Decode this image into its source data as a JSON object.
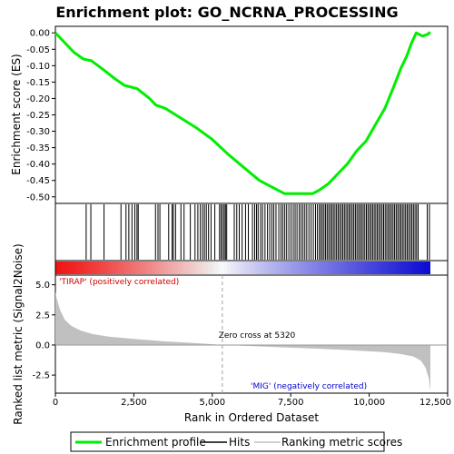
{
  "chart_data": {
    "type": "line",
    "title": "Enrichment plot: GO_NCRNA_PROCESSING",
    "x_axis": {
      "label": "Rank in Ordered Dataset",
      "range": [
        0,
        12500
      ],
      "ticks": [
        0,
        2500,
        5000,
        7500,
        10000,
        12500
      ],
      "tick_labels": [
        "0",
        "2,500",
        "5,000",
        "7,500",
        "10,000",
        "12,500"
      ]
    },
    "es_panel": {
      "ylabel": "Enrichment score (ES)",
      "ylim": [
        -0.52,
        0.02
      ],
      "yticks": [
        0.0,
        -0.05,
        -0.1,
        -0.15,
        -0.2,
        -0.25,
        -0.3,
        -0.35,
        -0.4,
        -0.45,
        -0.5
      ],
      "ytick_labels": [
        "0.00",
        "-0.05",
        "-0.10",
        "-0.15",
        "-0.20",
        "-0.25",
        "-0.30",
        "-0.35",
        "-0.40",
        "-0.45",
        "-0.50"
      ],
      "series": [
        {
          "name": "Enrichment profile",
          "color": "#00ee00",
          "x": [
            0,
            300,
            600,
            900,
            1150,
            1500,
            1900,
            2200,
            2600,
            3000,
            3200,
            3500,
            4000,
            4500,
            5000,
            5500,
            6000,
            6500,
            7000,
            7300,
            7600,
            8000,
            8200,
            8400,
            8700,
            9000,
            9300,
            9600,
            9900,
            10200,
            10500,
            10800,
            11000,
            11200,
            11350,
            11500,
            11700,
            11850,
            11950
          ],
          "y": [
            0.0,
            -0.03,
            -0.06,
            -0.08,
            -0.085,
            -0.11,
            -0.14,
            -0.16,
            -0.17,
            -0.2,
            -0.22,
            -0.23,
            -0.26,
            -0.29,
            -0.325,
            -0.37,
            -0.41,
            -0.45,
            -0.475,
            -0.49,
            -0.49,
            -0.49,
            -0.49,
            -0.48,
            -0.46,
            -0.43,
            -0.4,
            -0.36,
            -0.33,
            -0.28,
            -0.23,
            -0.16,
            -0.11,
            -0.07,
            -0.03,
            0.0,
            -0.01,
            -0.005,
            0.002
          ]
        }
      ]
    },
    "hits": {
      "name": "Hits",
      "x": [
        980,
        1130,
        1550,
        2090,
        2250,
        2340,
        2440,
        2530,
        2600,
        2640,
        3190,
        3270,
        3330,
        3610,
        3720,
        3760,
        3830,
        4000,
        4100,
        4300,
        4450,
        4540,
        4620,
        4690,
        4750,
        4810,
        4880,
        4960,
        5080,
        5230,
        5280,
        5330,
        5380,
        5420,
        5460,
        5700,
        5780,
        5860,
        5950,
        6060,
        6150,
        6280,
        6350,
        6410,
        6460,
        6540,
        6600,
        6680,
        6760,
        6830,
        6900,
        6960,
        7030,
        7120,
        7190,
        7250,
        7310,
        7370,
        7440,
        7510,
        7580,
        7640,
        7700,
        7770,
        7830,
        7890,
        7950,
        8010,
        8080,
        8150,
        8220,
        8290,
        8350,
        8410,
        8460,
        8510,
        8560,
        8610,
        8660,
        8710,
        8760,
        8810,
        8860,
        8910,
        8960,
        9010,
        9060,
        9110,
        9160,
        9210,
        9260,
        9310,
        9360,
        9410,
        9460,
        9510,
        9560,
        9610,
        9660,
        9710,
        9760,
        9810,
        9860,
        9910,
        9960,
        10010,
        10060,
        10110,
        10160,
        10210,
        10260,
        10310,
        10360,
        10410,
        10460,
        10510,
        10560,
        10610,
        10660,
        10710,
        10760,
        10810,
        10860,
        10910,
        10960,
        11010,
        11060,
        11110,
        11160,
        11210,
        11260,
        11310,
        11360,
        11410,
        11460,
        11510,
        11560,
        11850,
        11920
      ]
    },
    "rank_panel": {
      "ylabel": "Ranked list metric (Signal2Noise)",
      "ylim": [
        -4.0,
        5.8
      ],
      "yticks": [
        5.0,
        2.5,
        0.0,
        -2.5
      ],
      "ytick_labels": [
        "5.0",
        "2.5",
        "0.0",
        "-2.5"
      ],
      "fill_color": "#c0c0c0",
      "metric_x": [
        0,
        50,
        150,
        300,
        500,
        800,
        1200,
        1700,
        2500,
        3500,
        4500,
        5320,
        6500,
        7500,
        8500,
        9500,
        10500,
        11000,
        11400,
        11650,
        11800,
        11900,
        11950
      ],
      "metric_y": [
        4.4,
        3.8,
        2.9,
        2.1,
        1.6,
        1.2,
        0.9,
        0.7,
        0.5,
        0.3,
        0.15,
        0.0,
        -0.12,
        -0.22,
        -0.33,
        -0.45,
        -0.6,
        -0.75,
        -0.95,
        -1.3,
        -1.9,
        -2.8,
        -3.8
      ]
    },
    "zero_cross": {
      "x": 5320,
      "label": "Zero cross at 5320"
    },
    "annotations": [
      {
        "text": "'TIRAP' (positively correlated)",
        "color": "#cc0000"
      },
      {
        "text": "'MIG' (negatively correlated)",
        "color": "#0000cc"
      }
    ],
    "total_ranks": 11950,
    "legend": {
      "position": "bottom",
      "entries": [
        {
          "label": "Enrichment profile",
          "color": "#00ee00",
          "kind": "thick-line"
        },
        {
          "label": "Hits",
          "color": "#000000",
          "kind": "line"
        },
        {
          "label": "Ranking metric scores",
          "color": "#c0c0c0",
          "kind": "line"
        }
      ]
    }
  }
}
